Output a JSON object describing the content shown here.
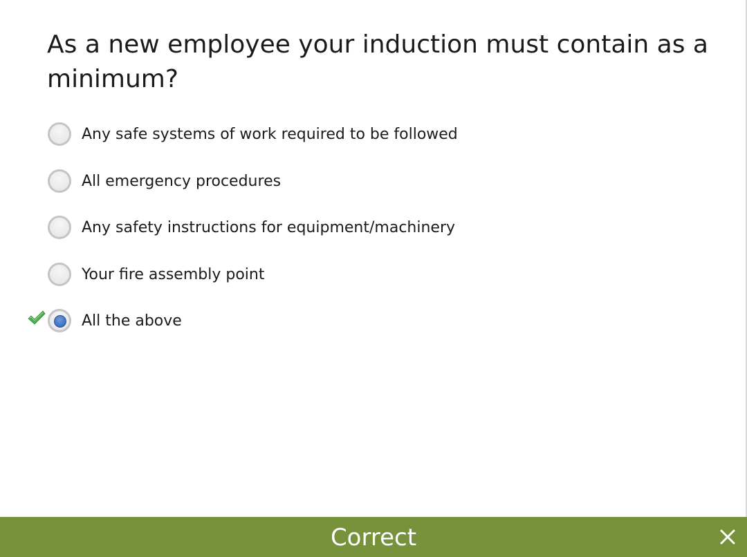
{
  "question": {
    "text": "As a new employee your induction must contain as a minimum?"
  },
  "options": [
    {
      "label": "Any safe systems of work required to be followed",
      "selected": false,
      "marked_correct": false
    },
    {
      "label": "All emergency procedures",
      "selected": false,
      "marked_correct": false
    },
    {
      "label": "Any safety instructions for equipment/machinery",
      "selected": false,
      "marked_correct": false
    },
    {
      "label": "Your fire assembly point",
      "selected": false,
      "marked_correct": false
    },
    {
      "label": "All the above",
      "selected": true,
      "marked_correct": true
    }
  ],
  "feedback": {
    "text": "Correct",
    "close_icon": "close-icon"
  },
  "colors": {
    "feedback_bar": "#77923a",
    "radio_selected": "#3c6fbf",
    "check_mark": "#4caf50"
  }
}
